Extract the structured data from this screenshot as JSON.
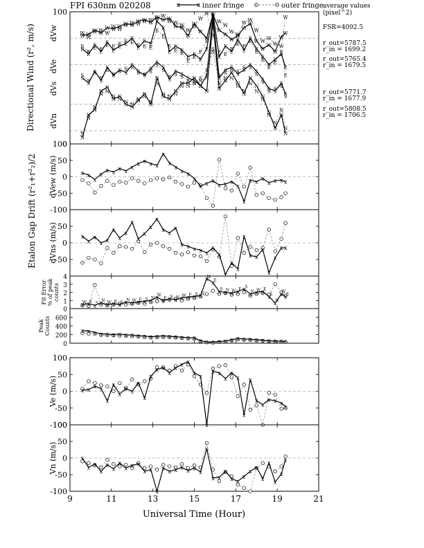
{
  "figure": {
    "title": "FPI 630nm 020208",
    "legend": {
      "inner": "inner fringe",
      "outer": "outer fringe"
    },
    "notes_heading": "average values",
    "notes_unit": "(pixel^2)",
    "fsr": "FSR=4092.5",
    "radii": [
      {
        "r_out": "r_out=5787.5",
        "r_in": "r_in = 1699.2"
      },
      {
        "r_out": "r_out=5765.4",
        "r_in": "r_in = 1679.5"
      },
      {
        "r_out": "r_out=5771.7",
        "r_in": "r_in = 1677.9"
      },
      {
        "r_out": "r_out=5808.5",
        "r_in": "r_in = 1706.5"
      }
    ],
    "xlabel": "Universal Time (Hour)",
    "group_label_wind": "Directional Wind (r², m/s)",
    "group_label_etalon": "Etalon Gap Drift (r²₁+r²₂)/2",
    "band_labels": [
      "dVw",
      "dVe",
      "dVs",
      "dVn"
    ]
  },
  "chart_data": [
    {
      "id": "directional-wind",
      "type": "scatter",
      "x_range": [
        9,
        21
      ],
      "ylim": [
        0,
        100
      ],
      "yticks": [
        0,
        100
      ],
      "grid_dashed": [
        10,
        30,
        60,
        80
      ],
      "series": [
        {
          "marker": "W",
          "x": [
            9.6,
            9.9,
            10.2,
            10.5,
            10.8,
            11.1,
            11.4,
            11.7,
            12.0,
            12.3,
            12.6,
            12.9,
            13.2,
            13.5,
            13.8,
            14.1,
            14.4,
            14.7,
            15.0,
            15.3,
            15.6,
            15.9,
            16.2,
            16.5,
            16.8,
            17.1,
            17.4,
            17.7,
            18.0,
            18.3,
            18.6,
            18.9,
            19.2,
            19.4
          ],
          "inner": [
            82,
            83,
            86,
            84,
            88,
            87,
            89,
            91,
            90,
            93,
            94,
            92,
            96,
            94,
            95,
            89,
            88,
            82,
            91,
            85,
            80,
            98,
            86,
            83,
            79,
            82,
            88,
            91,
            78,
            72,
            75,
            70,
            81,
            84
          ],
          "outer": [
            84,
            81,
            85,
            86,
            84,
            89,
            87,
            90,
            92,
            91,
            93,
            94,
            95,
            97,
            93,
            92,
            90,
            86,
            89,
            95,
            99,
            82,
            93,
            90,
            85,
            83,
            92,
            94,
            86,
            78,
            80,
            76,
            74,
            96
          ]
        },
        {
          "marker": "E",
          "x": [
            9.6,
            9.9,
            10.2,
            10.5,
            10.8,
            11.1,
            11.4,
            11.7,
            12.0,
            12.3,
            12.6,
            12.9,
            13.2,
            13.5,
            13.8,
            14.1,
            14.4,
            14.7,
            15.0,
            15.3,
            15.6,
            15.9,
            16.2,
            16.5,
            16.8,
            17.1,
            17.4,
            17.7,
            18.0,
            18.3,
            18.6,
            18.9,
            19.2,
            19.4
          ],
          "inner": [
            72,
            68,
            75,
            70,
            77,
            71,
            74,
            76,
            80,
            73,
            78,
            76,
            93,
            88,
            70,
            74,
            71,
            66,
            68,
            64,
            72,
            99,
            66,
            74,
            70,
            79,
            71,
            80,
            72,
            66,
            60,
            64,
            68,
            58
          ],
          "outer": [
            74,
            70,
            73,
            72,
            75,
            74,
            76,
            78,
            77,
            75,
            74,
            73,
            86,
            82,
            74,
            71,
            69,
            63,
            66,
            70,
            78,
            88,
            70,
            68,
            72,
            76,
            74,
            78,
            70,
            64,
            58,
            62,
            70,
            52
          ]
        },
        {
          "marker": "S",
          "x": [
            9.6,
            9.9,
            10.2,
            10.5,
            10.8,
            11.1,
            11.4,
            11.7,
            12.0,
            12.3,
            12.6,
            12.9,
            13.2,
            13.5,
            13.8,
            14.1,
            14.4,
            14.7,
            15.0,
            15.3,
            15.6,
            15.9,
            16.2,
            16.5,
            16.8,
            17.1,
            17.4,
            17.7,
            18.0,
            18.3,
            18.6,
            18.9,
            19.2,
            19.4
          ],
          "inner": [
            50,
            46,
            55,
            48,
            58,
            52,
            56,
            54,
            60,
            55,
            52,
            57,
            62,
            58,
            49,
            55,
            53,
            50,
            48,
            44,
            52,
            96,
            50,
            56,
            58,
            53,
            56,
            60,
            55,
            49,
            42,
            40,
            46,
            38
          ],
          "outer": [
            52,
            48,
            54,
            50,
            56,
            53,
            55,
            57,
            58,
            54,
            53,
            55,
            60,
            56,
            51,
            53,
            51,
            48,
            46,
            50,
            56,
            72,
            52,
            54,
            56,
            55,
            58,
            58,
            53,
            47,
            40,
            42,
            44,
            36
          ]
        },
        {
          "marker": "N",
          "x": [
            9.6,
            9.9,
            10.2,
            10.5,
            10.8,
            11.1,
            11.4,
            11.7,
            12.0,
            12.3,
            12.6,
            12.9,
            13.2,
            13.5,
            13.8,
            14.1,
            14.4,
            14.7,
            15.0,
            15.3,
            15.6,
            15.9,
            16.2,
            16.5,
            16.8,
            17.1,
            17.4,
            17.7,
            18.0,
            18.3,
            18.6,
            18.9,
            19.2,
            19.4
          ],
          "inner": [
            5,
            22,
            26,
            40,
            43,
            34,
            36,
            30,
            28,
            33,
            38,
            30,
            50,
            36,
            34,
            40,
            46,
            46,
            50,
            44,
            40,
            93,
            42,
            48,
            54,
            46,
            38,
            50,
            44,
            36,
            24,
            12,
            22,
            8
          ],
          "outer": [
            8,
            20,
            28,
            38,
            40,
            36,
            34,
            32,
            30,
            34,
            36,
            32,
            46,
            38,
            36,
            38,
            44,
            44,
            46,
            48,
            50,
            70,
            46,
            50,
            50,
            44,
            40,
            46,
            40,
            34,
            22,
            16,
            26,
            12
          ]
        }
      ]
    },
    {
      "id": "dvew",
      "type": "line",
      "ylabel": "dVew (m/s)",
      "ylim": [
        -100,
        100
      ],
      "yticks": [
        -100,
        -50,
        0,
        50,
        100
      ],
      "x": [
        9.6,
        9.9,
        10.2,
        10.5,
        10.8,
        11.1,
        11.4,
        11.7,
        12.0,
        12.3,
        12.6,
        12.9,
        13.2,
        13.5,
        13.8,
        14.1,
        14.4,
        14.7,
        15.0,
        15.3,
        15.6,
        15.9,
        16.2,
        16.5,
        16.8,
        17.1,
        17.4,
        17.7,
        18.0,
        18.3,
        18.6,
        18.9,
        19.2,
        19.4
      ],
      "inner": [
        12,
        5,
        -8,
        8,
        20,
        15,
        25,
        18,
        30,
        40,
        48,
        40,
        35,
        70,
        42,
        30,
        18,
        10,
        -5,
        -28,
        -20,
        -12,
        -25,
        -22,
        -15,
        -28,
        -75,
        -10,
        -15,
        -5,
        -18,
        -12,
        -10,
        -15
      ],
      "outer": [
        -10,
        -20,
        -48,
        -28,
        -12,
        -25,
        -15,
        -18,
        -5,
        -12,
        -20,
        -10,
        -5,
        -8,
        -2,
        -15,
        -22,
        -30,
        -18,
        -25,
        -65,
        -88,
        52,
        -35,
        -42,
        10,
        -30,
        28,
        -55,
        -50,
        -65,
        -70,
        -62,
        -50
      ]
    },
    {
      "id": "dvns",
      "type": "line",
      "ylabel": "dVns (m/s)",
      "ylim": [
        -100,
        100
      ],
      "yticks": [
        -50,
        0,
        50
      ],
      "x": [
        9.6,
        9.9,
        10.2,
        10.5,
        10.8,
        11.1,
        11.4,
        11.7,
        12.0,
        12.3,
        12.6,
        12.9,
        13.2,
        13.5,
        13.8,
        14.1,
        14.4,
        14.7,
        15.0,
        15.3,
        15.6,
        15.9,
        16.2,
        16.5,
        16.8,
        17.1,
        17.4,
        17.7,
        18.0,
        18.3,
        18.6,
        18.9,
        19.2,
        19.4
      ],
      "inner": [
        20,
        5,
        18,
        0,
        8,
        40,
        15,
        30,
        62,
        12,
        28,
        48,
        72,
        40,
        30,
        45,
        -5,
        -10,
        -18,
        -22,
        -30,
        -15,
        -35,
        -95,
        -60,
        -78,
        20,
        -38,
        -42,
        -20,
        -90,
        -45,
        -15,
        -15
      ],
      "outer": [
        -60,
        -45,
        -50,
        -62,
        -15,
        -30,
        -10,
        -12,
        -18,
        5,
        -28,
        -5,
        0,
        -10,
        -18,
        -30,
        -35,
        -28,
        -38,
        -40,
        -55,
        -20,
        -42,
        80,
        -70,
        15,
        -30,
        -12,
        -22,
        -15,
        40,
        -25,
        12,
        60
      ]
    },
    {
      "id": "fit-error",
      "type": "scatter",
      "ylabel": "Fit Error % of peak counts",
      "ylim": [
        0,
        4
      ],
      "yticks": [
        0,
        1,
        2,
        3,
        4
      ],
      "markers": [
        "W",
        "E",
        "S",
        "N"
      ],
      "x": [
        9.6,
        9.9,
        10.2,
        10.5,
        10.8,
        11.1,
        11.4,
        11.7,
        12.0,
        12.3,
        12.6,
        12.9,
        13.2,
        13.5,
        13.8,
        14.1,
        14.4,
        14.7,
        15.0,
        15.3,
        15.6,
        15.9,
        16.2,
        16.5,
        16.8,
        17.1,
        17.4,
        17.7,
        18.0,
        18.3,
        18.6,
        18.9,
        19.2,
        19.4
      ],
      "inner": [
        0.5,
        0.6,
        0.4,
        0.7,
        0.5,
        0.6,
        0.5,
        0.8,
        0.7,
        0.8,
        0.9,
        1.0,
        1.4,
        1.0,
        1.2,
        1.1,
        1.3,
        1.4,
        1.5,
        1.6,
        3.7,
        3.2,
        2.1,
        2.0,
        1.9,
        2.1,
        2.4,
        1.8,
        2.0,
        2.1,
        1.5,
        0.7,
        1.8,
        1.5
      ],
      "outer": [
        0.4,
        0.3,
        2.9,
        0.5,
        0.4,
        0.5,
        0.6,
        0.5,
        0.6,
        0.7,
        0.6,
        0.8,
        0.9,
        1.0,
        1.1,
        1.2,
        1.0,
        1.2,
        1.3,
        1.5,
        1.8,
        2.2,
        1.8,
        1.9,
        1.7,
        1.8,
        2.0,
        1.6,
        1.8,
        1.9,
        1.7,
        3.0,
        2.0,
        1.6
      ]
    },
    {
      "id": "peak-counts",
      "type": "line",
      "ylabel": "Peak Counts",
      "ylim": [
        0,
        800
      ],
      "yticks": [
        0,
        200,
        400,
        600
      ],
      "x": [
        9.6,
        9.9,
        10.2,
        10.5,
        10.8,
        11.1,
        11.4,
        11.7,
        12.0,
        12.3,
        12.6,
        12.9,
        13.2,
        13.5,
        13.8,
        14.1,
        14.4,
        14.7,
        15.0,
        15.3,
        15.6,
        15.9,
        16.2,
        16.5,
        16.8,
        17.1,
        17.4,
        17.7,
        18.0,
        18.3,
        18.6,
        18.9,
        19.2,
        19.4
      ],
      "inner": [
        290,
        280,
        250,
        220,
        210,
        200,
        210,
        195,
        190,
        175,
        165,
        150,
        160,
        170,
        160,
        150,
        140,
        130,
        125,
        60,
        30,
        25,
        40,
        50,
        80,
        110,
        100,
        95,
        80,
        70,
        55,
        50,
        45,
        40
      ],
      "outer": [
        230,
        220,
        215,
        190,
        185,
        180,
        175,
        170,
        160,
        150,
        140,
        130,
        135,
        140,
        135,
        130,
        120,
        110,
        100,
        45,
        20,
        15,
        25,
        35,
        60,
        85,
        75,
        70,
        60,
        55,
        45,
        40,
        35,
        30
      ]
    },
    {
      "id": "ve",
      "type": "line",
      "ylabel": "Ve (m/s)",
      "ylim": [
        -100,
        100
      ],
      "yticks": [
        -100,
        -50,
        0,
        50,
        100
      ],
      "x": [
        9.6,
        9.9,
        10.2,
        10.5,
        10.8,
        11.1,
        11.4,
        11.7,
        12.0,
        12.3,
        12.6,
        12.9,
        13.2,
        13.5,
        13.8,
        14.1,
        14.4,
        14.7,
        15.0,
        15.3,
        15.6,
        15.9,
        16.2,
        16.5,
        16.8,
        17.1,
        17.4,
        17.7,
        18.0,
        18.3,
        18.6,
        18.9,
        19.2,
        19.4
      ],
      "inner": [
        3,
        5,
        15,
        8,
        -28,
        20,
        -8,
        8,
        0,
        25,
        -20,
        45,
        65,
        70,
        55,
        70,
        80,
        88,
        55,
        45,
        -100,
        60,
        55,
        38,
        55,
        40,
        -70,
        35,
        -28,
        -40,
        -25,
        -28,
        -35,
        -45
      ],
      "outer": [
        8,
        30,
        25,
        18,
        15,
        0,
        25,
        10,
        35,
        20,
        30,
        38,
        72,
        72,
        62,
        75,
        62,
        80,
        45,
        20,
        -5,
        68,
        75,
        78,
        42,
        -15,
        20,
        -55,
        -42,
        -100,
        -5,
        -10,
        -52,
        -50
      ]
    },
    {
      "id": "vn",
      "type": "line",
      "ylabel": "Vn (m/s)",
      "ylim": [
        -100,
        100
      ],
      "yticks": [
        -100,
        -50,
        0,
        50,
        100
      ],
      "x": [
        9.6,
        9.9,
        10.2,
        10.5,
        10.8,
        11.1,
        11.4,
        11.7,
        12.0,
        12.3,
        12.6,
        12.9,
        13.2,
        13.5,
        13.8,
        14.1,
        14.4,
        14.7,
        15.0,
        15.3,
        15.6,
        15.9,
        16.2,
        16.5,
        16.8,
        17.1,
        17.4,
        17.7,
        18.0,
        18.3,
        18.6,
        18.9,
        19.2,
        19.4
      ],
      "inner": [
        0,
        -28,
        -18,
        -40,
        -20,
        -32,
        -15,
        -30,
        -22,
        -18,
        -40,
        -35,
        -100,
        -30,
        -40,
        -35,
        -28,
        -38,
        -30,
        -42,
        28,
        -60,
        -58,
        -40,
        -62,
        -70,
        -55,
        -40,
        -28,
        -62,
        -15,
        -72,
        -48,
        -5
      ],
      "outer": [
        -10,
        -15,
        -22,
        -28,
        -5,
        -18,
        -25,
        -20,
        -30,
        -15,
        -30,
        -25,
        -35,
        -20,
        -25,
        -28,
        -18,
        -30,
        -22,
        -28,
        45,
        -35,
        -70,
        -42,
        -55,
        -80,
        -90,
        -100,
        -30,
        -15,
        -25,
        -40,
        -25,
        5
      ]
    }
  ]
}
